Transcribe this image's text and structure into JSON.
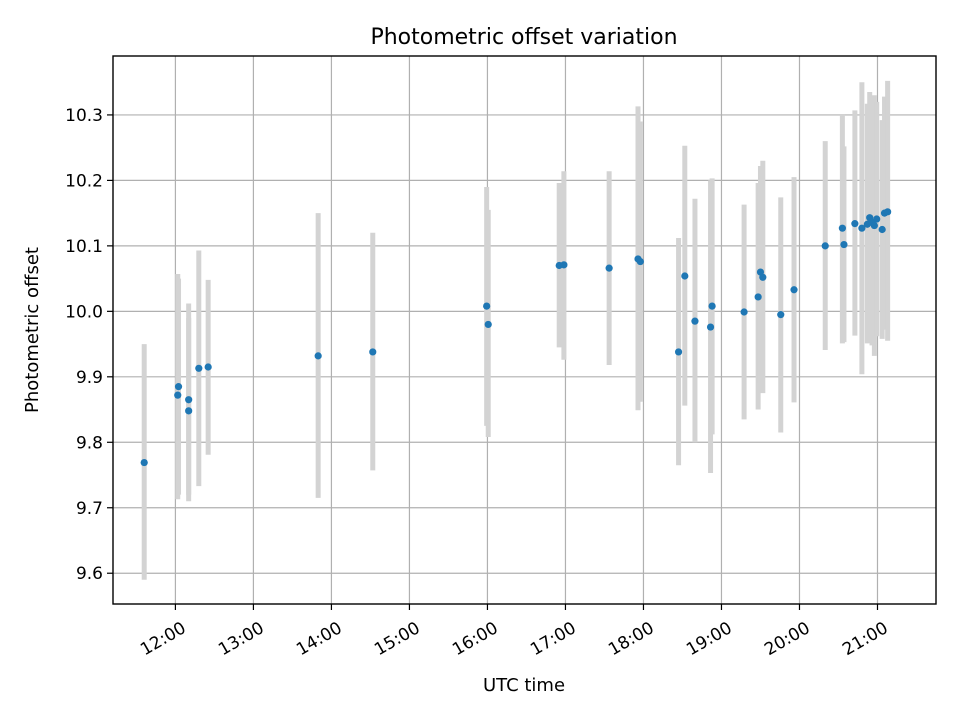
{
  "chart_data": {
    "type": "scatter",
    "title": "Photometric offset variation",
    "xlabel": "UTC time",
    "ylabel": "Photometric offset",
    "x_unit": "hour of day (UTC)",
    "xlim": [
      11.2,
      21.75
    ],
    "ylim": [
      9.553,
      10.39
    ],
    "x_ticks": [
      {
        "value": 12,
        "label": "12:00"
      },
      {
        "value": 13,
        "label": "13:00"
      },
      {
        "value": 14,
        "label": "14:00"
      },
      {
        "value": 15,
        "label": "15:00"
      },
      {
        "value": 16,
        "label": "16:00"
      },
      {
        "value": 17,
        "label": "17:00"
      },
      {
        "value": 18,
        "label": "18:00"
      },
      {
        "value": 19,
        "label": "19:00"
      },
      {
        "value": 20,
        "label": "20:00"
      },
      {
        "value": 21,
        "label": "21:00"
      }
    ],
    "y_ticks": [
      {
        "value": 9.6,
        "label": "9.6"
      },
      {
        "value": 9.7,
        "label": "9.7"
      },
      {
        "value": 9.8,
        "label": "9.8"
      },
      {
        "value": 9.9,
        "label": "9.9"
      },
      {
        "value": 10.0,
        "label": "10.0"
      },
      {
        "value": 10.1,
        "label": "10.1"
      },
      {
        "value": 10.2,
        "label": "10.2"
      },
      {
        "value": 10.3,
        "label": "10.3"
      }
    ],
    "grid": true,
    "colors": {
      "point": "#1f77b4",
      "errorbar": "#d3d3d3"
    },
    "points": [
      {
        "x": 11.6,
        "y": 9.769,
        "ylo": 9.59,
        "yhi": 9.95
      },
      {
        "x": 12.03,
        "y": 9.872,
        "ylo": 9.713,
        "yhi": 10.057
      },
      {
        "x": 12.04,
        "y": 9.885,
        "ylo": 9.72,
        "yhi": 10.05
      },
      {
        "x": 12.17,
        "y": 9.865,
        "ylo": 9.71,
        "yhi": 10.012
      },
      {
        "x": 12.17,
        "y": 9.848,
        "ylo": 9.72,
        "yhi": 9.99
      },
      {
        "x": 12.3,
        "y": 9.913,
        "ylo": 9.733,
        "yhi": 10.093
      },
      {
        "x": 12.42,
        "y": 9.915,
        "ylo": 9.781,
        "yhi": 10.048
      },
      {
        "x": 13.83,
        "y": 9.932,
        "ylo": 9.715,
        "yhi": 10.15
      },
      {
        "x": 14.53,
        "y": 9.938,
        "ylo": 9.757,
        "yhi": 10.12
      },
      {
        "x": 15.99,
        "y": 10.008,
        "ylo": 9.825,
        "yhi": 10.19
      },
      {
        "x": 16.01,
        "y": 9.98,
        "ylo": 9.808,
        "yhi": 10.155
      },
      {
        "x": 16.92,
        "y": 10.07,
        "ylo": 9.945,
        "yhi": 10.196
      },
      {
        "x": 16.98,
        "y": 10.071,
        "ylo": 9.926,
        "yhi": 10.214
      },
      {
        "x": 17.56,
        "y": 10.066,
        "ylo": 9.918,
        "yhi": 10.214
      },
      {
        "x": 17.93,
        "y": 10.08,
        "ylo": 9.849,
        "yhi": 10.313
      },
      {
        "x": 17.96,
        "y": 10.076,
        "ylo": 9.862,
        "yhi": 10.29
      },
      {
        "x": 18.45,
        "y": 9.938,
        "ylo": 9.765,
        "yhi": 10.112
      },
      {
        "x": 18.53,
        "y": 10.054,
        "ylo": 9.856,
        "yhi": 10.253
      },
      {
        "x": 18.66,
        "y": 9.985,
        "ylo": 9.8,
        "yhi": 10.172
      },
      {
        "x": 18.86,
        "y": 9.976,
        "ylo": 9.753,
        "yhi": 10.2
      },
      {
        "x": 18.88,
        "y": 10.008,
        "ylo": 9.812,
        "yhi": 10.203
      },
      {
        "x": 19.29,
        "y": 9.999,
        "ylo": 9.835,
        "yhi": 10.163
      },
      {
        "x": 19.47,
        "y": 10.022,
        "ylo": 9.85,
        "yhi": 10.196
      },
      {
        "x": 19.5,
        "y": 10.06,
        "ylo": 9.89,
        "yhi": 10.222
      },
      {
        "x": 19.53,
        "y": 10.052,
        "ylo": 9.875,
        "yhi": 10.23
      },
      {
        "x": 19.76,
        "y": 9.995,
        "ylo": 9.815,
        "yhi": 10.174
      },
      {
        "x": 19.93,
        "y": 10.033,
        "ylo": 9.861,
        "yhi": 10.205
      },
      {
        "x": 20.33,
        "y": 10.1,
        "ylo": 9.941,
        "yhi": 10.26
      },
      {
        "x": 20.55,
        "y": 10.127,
        "ylo": 9.951,
        "yhi": 10.3
      },
      {
        "x": 20.57,
        "y": 10.102,
        "ylo": 9.953,
        "yhi": 10.252
      },
      {
        "x": 20.71,
        "y": 10.134,
        "ylo": 9.963,
        "yhi": 10.307
      },
      {
        "x": 20.8,
        "y": 10.127,
        "ylo": 9.904,
        "yhi": 10.35
      },
      {
        "x": 20.87,
        "y": 10.133,
        "ylo": 9.951,
        "yhi": 10.317
      },
      {
        "x": 20.9,
        "y": 10.143,
        "ylo": 9.952,
        "yhi": 10.335
      },
      {
        "x": 20.93,
        "y": 10.136,
        "ylo": 9.948,
        "yhi": 10.326
      },
      {
        "x": 20.96,
        "y": 10.131,
        "ylo": 9.932,
        "yhi": 10.33
      },
      {
        "x": 20.99,
        "y": 10.141,
        "ylo": 9.962,
        "yhi": 10.32
      },
      {
        "x": 21.06,
        "y": 10.125,
        "ylo": 9.958,
        "yhi": 10.292
      },
      {
        "x": 21.09,
        "y": 10.15,
        "ylo": 9.972,
        "yhi": 10.328
      },
      {
        "x": 21.13,
        "y": 10.152,
        "ylo": 9.955,
        "yhi": 10.352
      }
    ]
  }
}
